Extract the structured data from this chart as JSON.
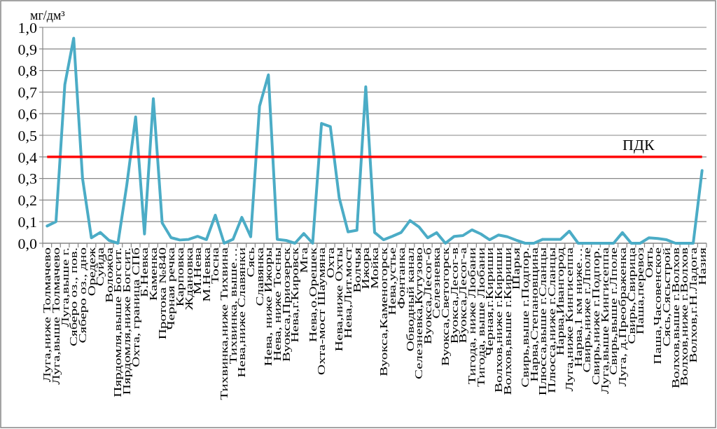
{
  "chart_data": {
    "type": "line",
    "ylabel": "мг/дм³",
    "categories": [
      "Луга,ниже Толмачево",
      "Луга,выше Толмачево",
      "Луга,выше г.",
      "Сяберо оз., пов.",
      "Сяберо оз., дно",
      "Оредеж",
      "Суйда",
      "Воложба",
      "Пярдомля,выше Богсит.",
      "Пярдомля,ниже Богсит.",
      "Охта, граница СПб",
      "Б.Невка",
      "Каменка",
      "Протока №840",
      "Черная речка",
      "Карповка",
      "Ждановка",
      "М.Нева",
      "М.Невка",
      "Тосна",
      "Тихвинка,ниже Тихвина",
      "Тихвинка, выше…",
      "Нева,ниже Славянки",
      "Сясь",
      "Славянка",
      "Нева, ниже Ижоры",
      "Нева, ниже Тосны",
      "Вуокса,Приозерск",
      "Нева,г.Кировск",
      "Мга",
      "Нева,о.Орешек",
      "Охта-мост Шаумяна",
      "Охта",
      "Нева,ниже Охты",
      "Нева,Лит.мост",
      "Волчья",
      "Ижора",
      "Мойка",
      "Вуокса,Каменогорск",
      "Нева,устье",
      "Фонтанка",
      "Обводный канал",
      "Селезневка,Кутузово",
      "Вуокса,Лесог-б",
      "Селезневка",
      "Вуокса,Светогорск",
      "Вуокса,Лесог-в",
      "Вуокса,Лесог-а",
      "Тигода, ниже Любани",
      "Тигода, выше Любани",
      "Черная,г.Кириши",
      "Волхов,ниже г.Кириши",
      "Волхов,выше г.Кириши",
      "Шарья",
      "Свирь,выше г.Подпор.",
      "Нарва,Степановщина",
      "Плюсса,выше г.Сланцы",
      "Плюсса,ниже г.Сланцы",
      "Нарва,Ивангород",
      "Луга,ниже Кингисеппа",
      "Нарва,1 км ниже…",
      "Свирь,ниже г.Лполе",
      "Свирь,ниже г.Подпор.",
      "Луга,выше Кингисеппа",
      "Свирь,выше г.Лполе",
      "Луга, д.Преображенка",
      "Свирь,Свирица",
      "Паша,перевоз",
      "Оять",
      "Паша,Часовенское",
      "Сясь,Сясьстрой",
      "Волхов,выше г.Волхов",
      "Волхов,ниже г.Волхов",
      "Волхов,г.Н.Ладога",
      "Назия"
    ],
    "series": [
      {
        "color": "#4bacc6",
        "values": [
          0.08,
          0.1,
          0.735,
          0.95,
          0.3,
          0.025,
          0.05,
          0.013,
          0,
          0.27,
          0.585,
          0.043,
          0.67,
          0.094,
          0.026,
          0.015,
          0.018,
          0.032,
          0.017,
          0.13,
          0,
          0.018,
          0.12,
          0.03,
          0.635,
          0.78,
          0.018,
          0.013,
          0,
          0.045,
          0,
          0.555,
          0.54,
          0.21,
          0.053,
          0.06,
          0.725,
          0.05,
          0.016,
          0.032,
          0.05,
          0.105,
          0.076,
          0.025,
          0.049,
          0,
          0.032,
          0.036,
          0.062,
          0.043,
          0.016,
          0.038,
          0.03,
          0.014,
          0,
          0,
          0.018,
          0.018,
          0.018,
          0.056,
          0,
          0,
          0,
          0,
          0,
          0.049,
          0,
          0,
          0.025,
          0.022,
          0.016,
          0,
          0,
          0,
          0.337
        ]
      }
    ],
    "ylim": [
      0,
      1
    ],
    "yticks": [
      {
        "value": 0,
        "label": "0,0"
      },
      {
        "value": 0.1,
        "label": "0,1"
      },
      {
        "value": 0.2,
        "label": "0,2"
      },
      {
        "value": 0.3,
        "label": "0,3"
      },
      {
        "value": 0.4,
        "label": "0,4"
      },
      {
        "value": 0.5,
        "label": "0,5"
      },
      {
        "value": 0.6,
        "label": "0,6"
      },
      {
        "value": 0.7,
        "label": "0,7"
      },
      {
        "value": 0.8,
        "label": "0,8"
      },
      {
        "value": 0.9,
        "label": "0,9"
      },
      {
        "value": 1,
        "label": "1,0"
      }
    ],
    "grid": "y",
    "ref_lines": [
      {
        "axis": "y",
        "value": 0.4,
        "label": "ПДК",
        "color": "#ff0000"
      }
    ]
  }
}
